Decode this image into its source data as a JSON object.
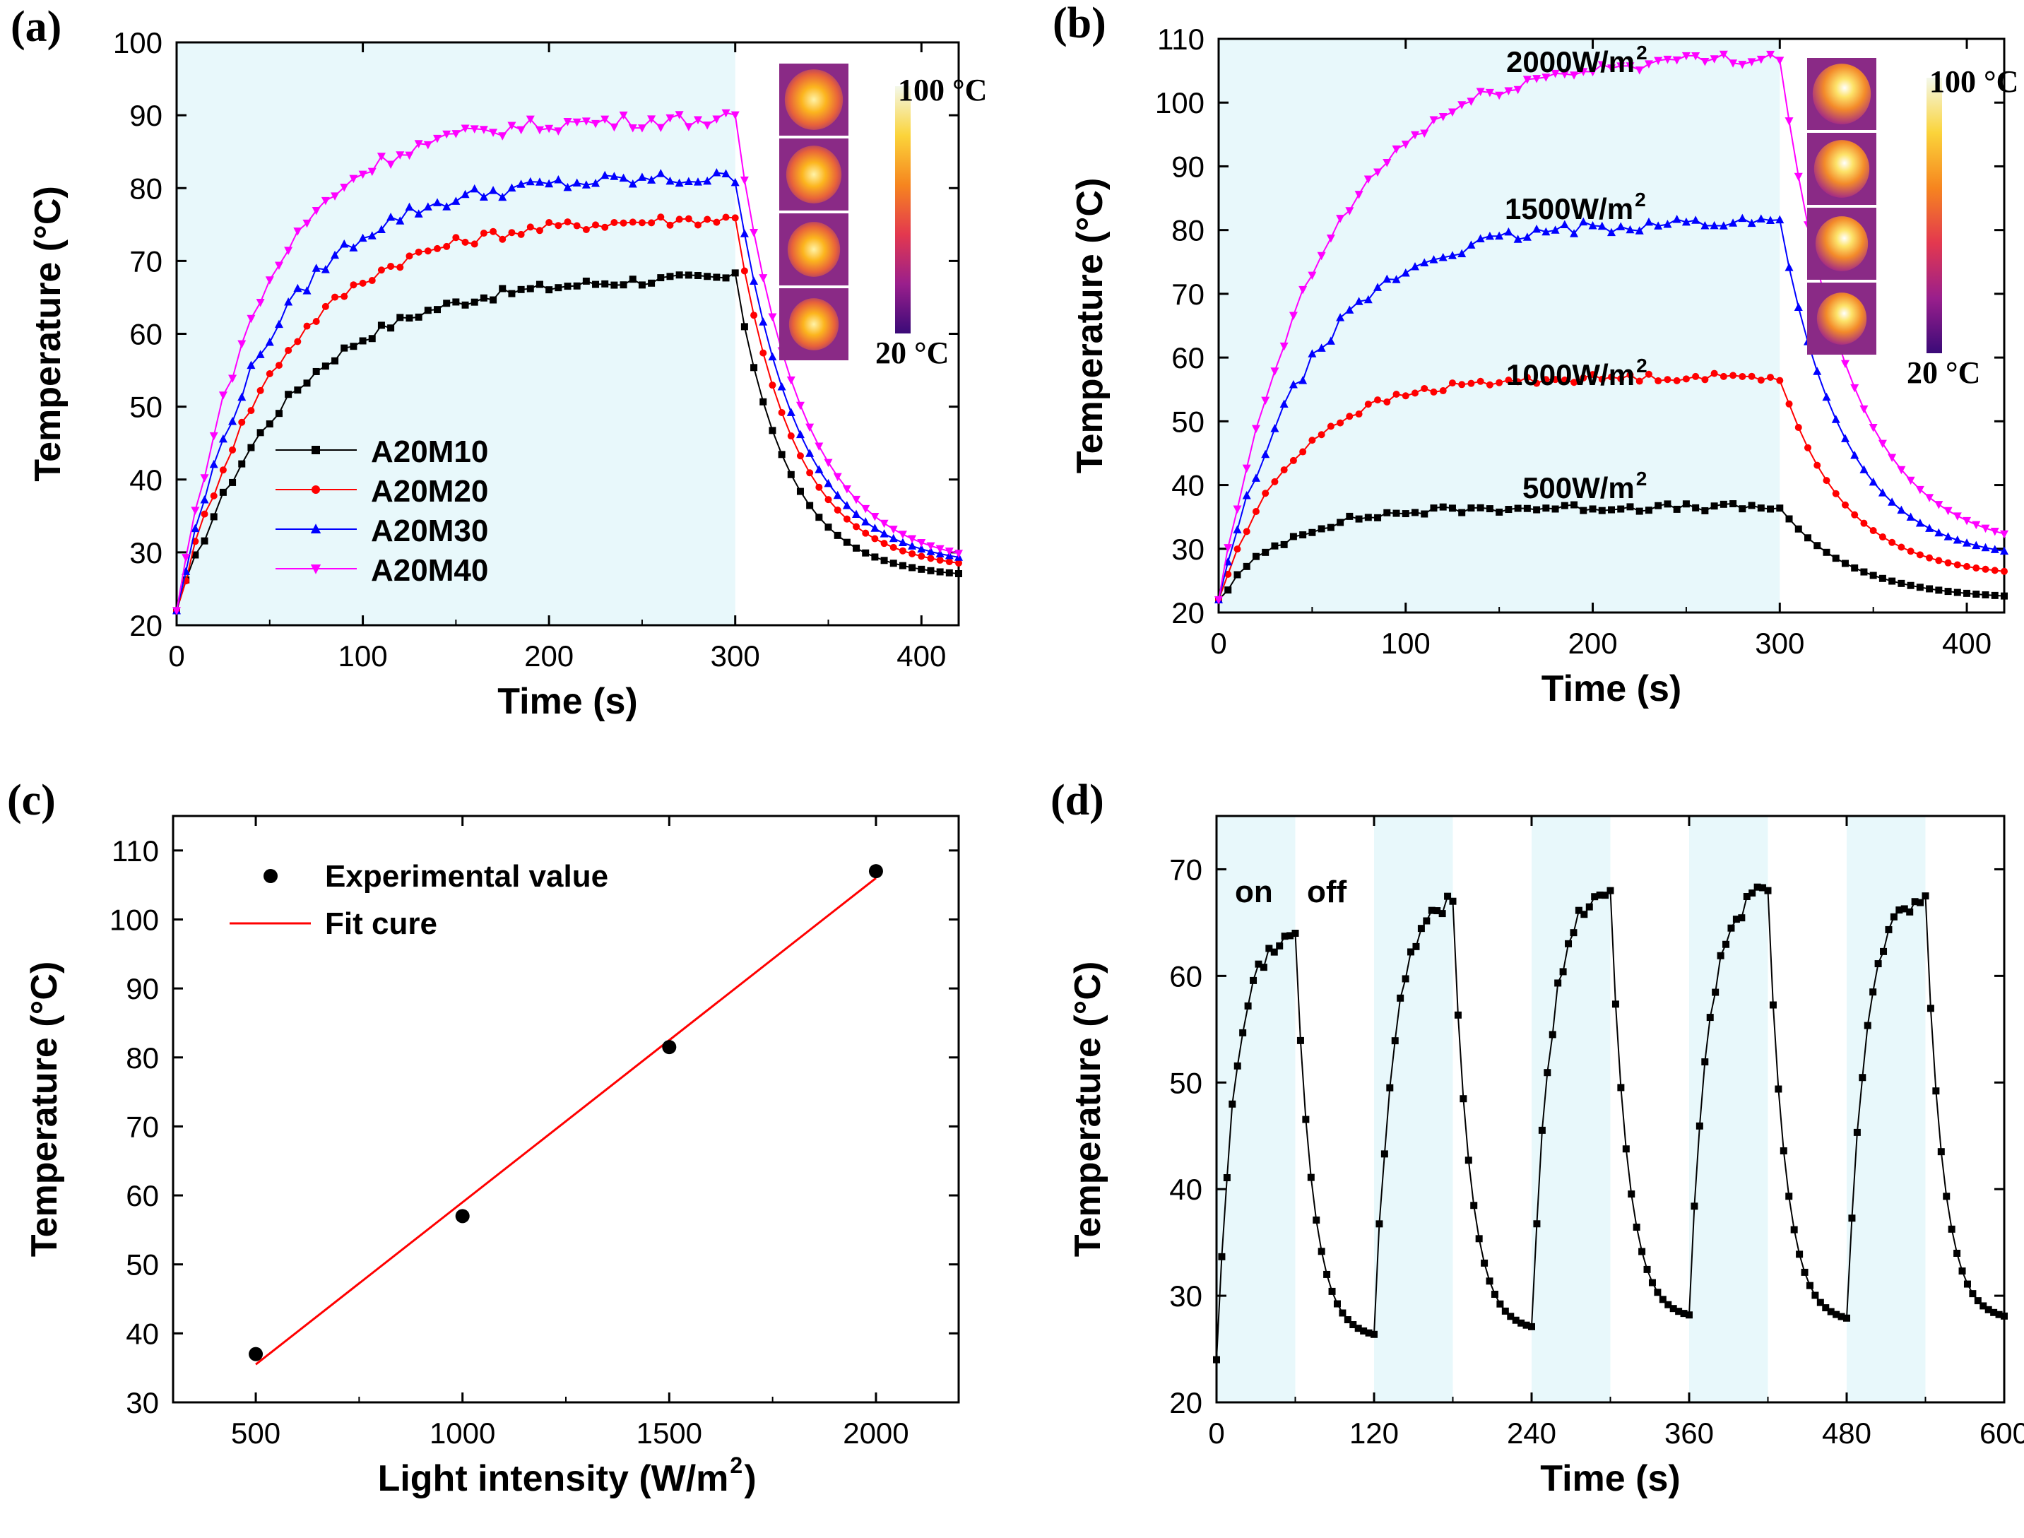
{
  "chart_data": [
    {
      "id": "a",
      "panel_label": "(a)",
      "type": "line",
      "xlabel": "Time (s)",
      "ylabel": "Temperature (°C)",
      "xlim": [
        0,
        420
      ],
      "ylim": [
        20,
        100
      ],
      "xticks": [
        0,
        100,
        200,
        300,
        400
      ],
      "yticks": [
        20,
        30,
        40,
        50,
        60,
        70,
        80,
        90,
        100
      ],
      "shaded_intervals": [
        [
          0,
          300
        ]
      ],
      "legend": [
        "A20M10",
        "A20M20",
        "A20M30",
        "A20M40"
      ],
      "colorbar": {
        "max_label": "100 °C",
        "min_label": "20 °C"
      },
      "series": [
        {
          "name": "A20M10",
          "color": "#000000",
          "marker": "square",
          "plateau": 68,
          "t63": 60,
          "final": 26.5,
          "cool_tau": 45,
          "jitter": 0.7
        },
        {
          "name": "A20M20",
          "color": "#ff0000",
          "marker": "circle",
          "plateau": 76,
          "t63": 55,
          "final": 27.5,
          "cool_tau": 50,
          "jitter": 0.8
        },
        {
          "name": "A20M30",
          "color": "#0000ff",
          "marker": "triangle-up",
          "plateau": 81.5,
          "t63": 50,
          "final": 28,
          "cool_tau": 52,
          "jitter": 1.0
        },
        {
          "name": "A20M40",
          "color": "#ff00ff",
          "marker": "triangle-down",
          "plateau": 89.5,
          "t63": 45,
          "final": 28,
          "cool_tau": 55,
          "jitter": 1.0
        }
      ]
    },
    {
      "id": "b",
      "panel_label": "(b)",
      "type": "line",
      "xlabel": "Time (s)",
      "ylabel": "Temperature (°C)",
      "xlim": [
        0,
        420
      ],
      "ylim": [
        20,
        110
      ],
      "xticks": [
        0,
        100,
        200,
        300,
        400
      ],
      "yticks": [
        20,
        30,
        40,
        50,
        60,
        70,
        80,
        90,
        100,
        110
      ],
      "shaded_intervals": [
        [
          0,
          300
        ]
      ],
      "colorbar": {
        "max_label": "100 °C",
        "min_label": "20 °C"
      },
      "series": [
        {
          "name": "500W/m²",
          "annotation": "500W/m",
          "color": "#000000",
          "marker": "square",
          "plateau": 36.5,
          "t63": 35,
          "final": 22,
          "cool_tau": 60,
          "jitter": 0.6
        },
        {
          "name": "1000W/m²",
          "annotation": "1000W/m",
          "color": "#ff0000",
          "marker": "circle",
          "plateau": 57,
          "t63": 40,
          "final": 25.5,
          "cool_tau": 55,
          "jitter": 0.6
        },
        {
          "name": "1500W/m²",
          "annotation": "1500W/m",
          "color": "#0000ff",
          "marker": "triangle-up",
          "plateau": 81.5,
          "t63": 50,
          "final": 28,
          "cool_tau": 55,
          "jitter": 1.0
        },
        {
          "name": "2000W/m²",
          "annotation": "2000W/m",
          "color": "#ff00ff",
          "marker": "triangle-down",
          "plateau": 107.5,
          "t63": 55,
          "final": 29.5,
          "cool_tau": 58,
          "jitter": 1.0
        }
      ]
    },
    {
      "id": "c",
      "panel_label": "(c)",
      "type": "scatter",
      "xlabel": "Light intensity (W/m",
      "xlabel_suffix": ")",
      "ylabel": "Temperature (°C)",
      "xlim": [
        300,
        2200
      ],
      "ylim": [
        30,
        115
      ],
      "xticks": [
        500,
        1000,
        1500,
        2000
      ],
      "yticks": [
        30,
        40,
        50,
        60,
        70,
        80,
        90,
        100,
        110
      ],
      "legend": [
        "Experimental value",
        "Fit cure"
      ],
      "points": {
        "x": [
          500,
          1000,
          1500,
          2000
        ],
        "y": [
          37,
          57,
          81.5,
          107
        ]
      },
      "fit_line": {
        "x": [
          500,
          2000
        ],
        "y": [
          35.5,
          106
        ],
        "color": "#ff0000"
      }
    },
    {
      "id": "d",
      "panel_label": "(d)",
      "type": "line",
      "xlabel": "Time (s)",
      "ylabel": "Temperature (°C)",
      "xlim": [
        0,
        600
      ],
      "ylim": [
        20,
        75
      ],
      "xticks": [
        0,
        120,
        240,
        360,
        480,
        600
      ],
      "yticks": [
        20,
        30,
        40,
        50,
        60,
        70
      ],
      "shaded_intervals": [
        [
          0,
          60
        ],
        [
          120,
          180
        ],
        [
          240,
          300
        ],
        [
          360,
          420
        ],
        [
          480,
          540
        ]
      ],
      "annotations": [
        "on",
        "off"
      ],
      "cycles": [
        {
          "start": 0,
          "on_start_temp": 24,
          "peak": 64,
          "end": 26
        },
        {
          "start": 120,
          "on_start_temp": 26,
          "peak": 67,
          "end": 26.7
        },
        {
          "start": 240,
          "on_start_temp": 26.7,
          "peak": 68,
          "end": 27.8
        },
        {
          "start": 360,
          "on_start_temp": 27.8,
          "peak": 68,
          "end": 27.5
        },
        {
          "start": 480,
          "on_start_temp": 27.5,
          "peak": 67.5,
          "end": 27.7
        }
      ]
    }
  ]
}
